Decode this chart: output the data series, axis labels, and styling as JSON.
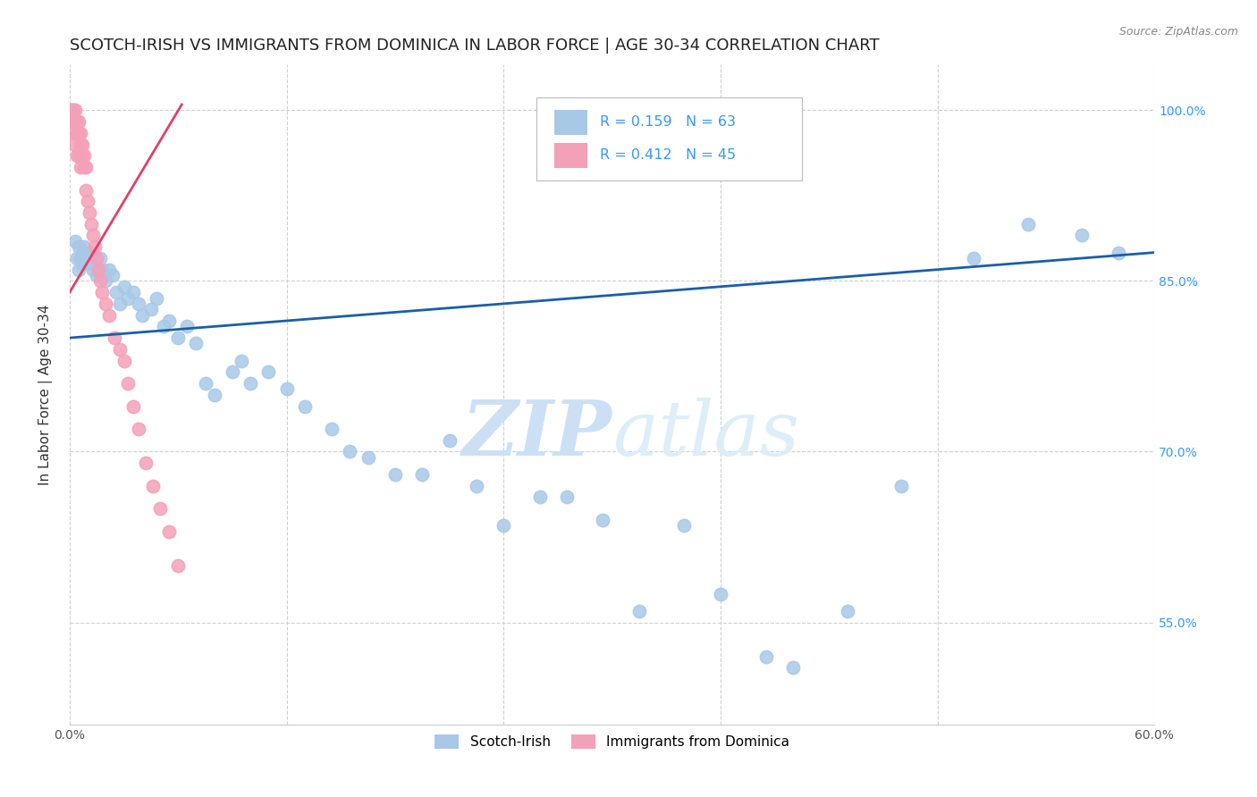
{
  "title": "SCOTCH-IRISH VS IMMIGRANTS FROM DOMINICA IN LABOR FORCE | AGE 30-34 CORRELATION CHART",
  "source": "Source: ZipAtlas.com",
  "ylabel": "In Labor Force | Age 30-34",
  "xmin": 0.0,
  "xmax": 0.6,
  "ymin": 0.46,
  "ymax": 1.04,
  "ytick_labels_right": [
    "55.0%",
    "70.0%",
    "85.0%",
    "100.0%"
  ],
  "ytick_values_right": [
    0.55,
    0.7,
    0.85,
    1.0
  ],
  "legend_r_blue": "R = 0.159",
  "legend_n_blue": "N = 63",
  "legend_r_pink": "R = 0.412",
  "legend_n_pink": "N = 45",
  "scotch_irish_x": [
    0.003,
    0.004,
    0.005,
    0.005,
    0.006,
    0.007,
    0.007,
    0.008,
    0.009,
    0.01,
    0.011,
    0.012,
    0.013,
    0.015,
    0.017,
    0.018,
    0.02,
    0.022,
    0.024,
    0.026,
    0.028,
    0.03,
    0.032,
    0.035,
    0.038,
    0.04,
    0.045,
    0.048,
    0.052,
    0.055,
    0.06,
    0.065,
    0.07,
    0.075,
    0.08,
    0.09,
    0.095,
    0.1,
    0.11,
    0.12,
    0.13,
    0.145,
    0.155,
    0.165,
    0.18,
    0.195,
    0.21,
    0.225,
    0.24,
    0.26,
    0.275,
    0.295,
    0.315,
    0.34,
    0.36,
    0.385,
    0.4,
    0.43,
    0.46,
    0.5,
    0.53,
    0.56,
    0.58
  ],
  "scotch_irish_y": [
    0.885,
    0.87,
    0.86,
    0.88,
    0.87,
    0.875,
    0.865,
    0.88,
    0.875,
    0.87,
    0.865,
    0.875,
    0.86,
    0.855,
    0.87,
    0.86,
    0.85,
    0.86,
    0.855,
    0.84,
    0.83,
    0.845,
    0.835,
    0.84,
    0.83,
    0.82,
    0.825,
    0.835,
    0.81,
    0.815,
    0.8,
    0.81,
    0.795,
    0.76,
    0.75,
    0.77,
    0.78,
    0.76,
    0.77,
    0.755,
    0.74,
    0.72,
    0.7,
    0.695,
    0.68,
    0.68,
    0.71,
    0.67,
    0.635,
    0.66,
    0.66,
    0.64,
    0.56,
    0.635,
    0.575,
    0.52,
    0.51,
    0.56,
    0.67,
    0.87,
    0.9,
    0.89,
    0.875
  ],
  "dominica_x": [
    0.001,
    0.001,
    0.002,
    0.002,
    0.002,
    0.003,
    0.003,
    0.003,
    0.004,
    0.004,
    0.004,
    0.005,
    0.005,
    0.005,
    0.006,
    0.006,
    0.006,
    0.007,
    0.007,
    0.008,
    0.008,
    0.009,
    0.009,
    0.01,
    0.011,
    0.012,
    0.013,
    0.014,
    0.015,
    0.016,
    0.017,
    0.018,
    0.02,
    0.022,
    0.025,
    0.028,
    0.03,
    0.032,
    0.035,
    0.038,
    0.042,
    0.046,
    0.05,
    0.055,
    0.06
  ],
  "dominica_y": [
    1.0,
    1.0,
    1.0,
    0.99,
    0.98,
    1.0,
    0.99,
    0.97,
    0.99,
    0.98,
    0.96,
    0.99,
    0.98,
    0.96,
    0.98,
    0.97,
    0.95,
    0.97,
    0.96,
    0.96,
    0.95,
    0.95,
    0.93,
    0.92,
    0.91,
    0.9,
    0.89,
    0.88,
    0.87,
    0.86,
    0.85,
    0.84,
    0.83,
    0.82,
    0.8,
    0.79,
    0.78,
    0.76,
    0.74,
    0.72,
    0.69,
    0.67,
    0.65,
    0.63,
    0.6
  ],
  "blue_line_x": [
    0.0,
    0.6
  ],
  "blue_line_y": [
    0.8,
    0.875
  ],
  "pink_line_x": [
    0.0,
    0.062
  ],
  "pink_line_y": [
    0.84,
    1.005
  ],
  "scatter_color_blue": "#a8c8e8",
  "scatter_color_pink": "#f4a0b8",
  "line_color_blue": "#1a5fa8",
  "line_color_pink": "#e0406a",
  "grid_color": "#d0d0d0",
  "watermark_zip": "ZIP",
  "watermark_atlas": "atlas",
  "watermark_color": "#ddeeff",
  "background_color": "#ffffff",
  "title_fontsize": 13,
  "axis_label_fontsize": 11,
  "tick_fontsize": 10,
  "right_tick_color": "#3399ff"
}
